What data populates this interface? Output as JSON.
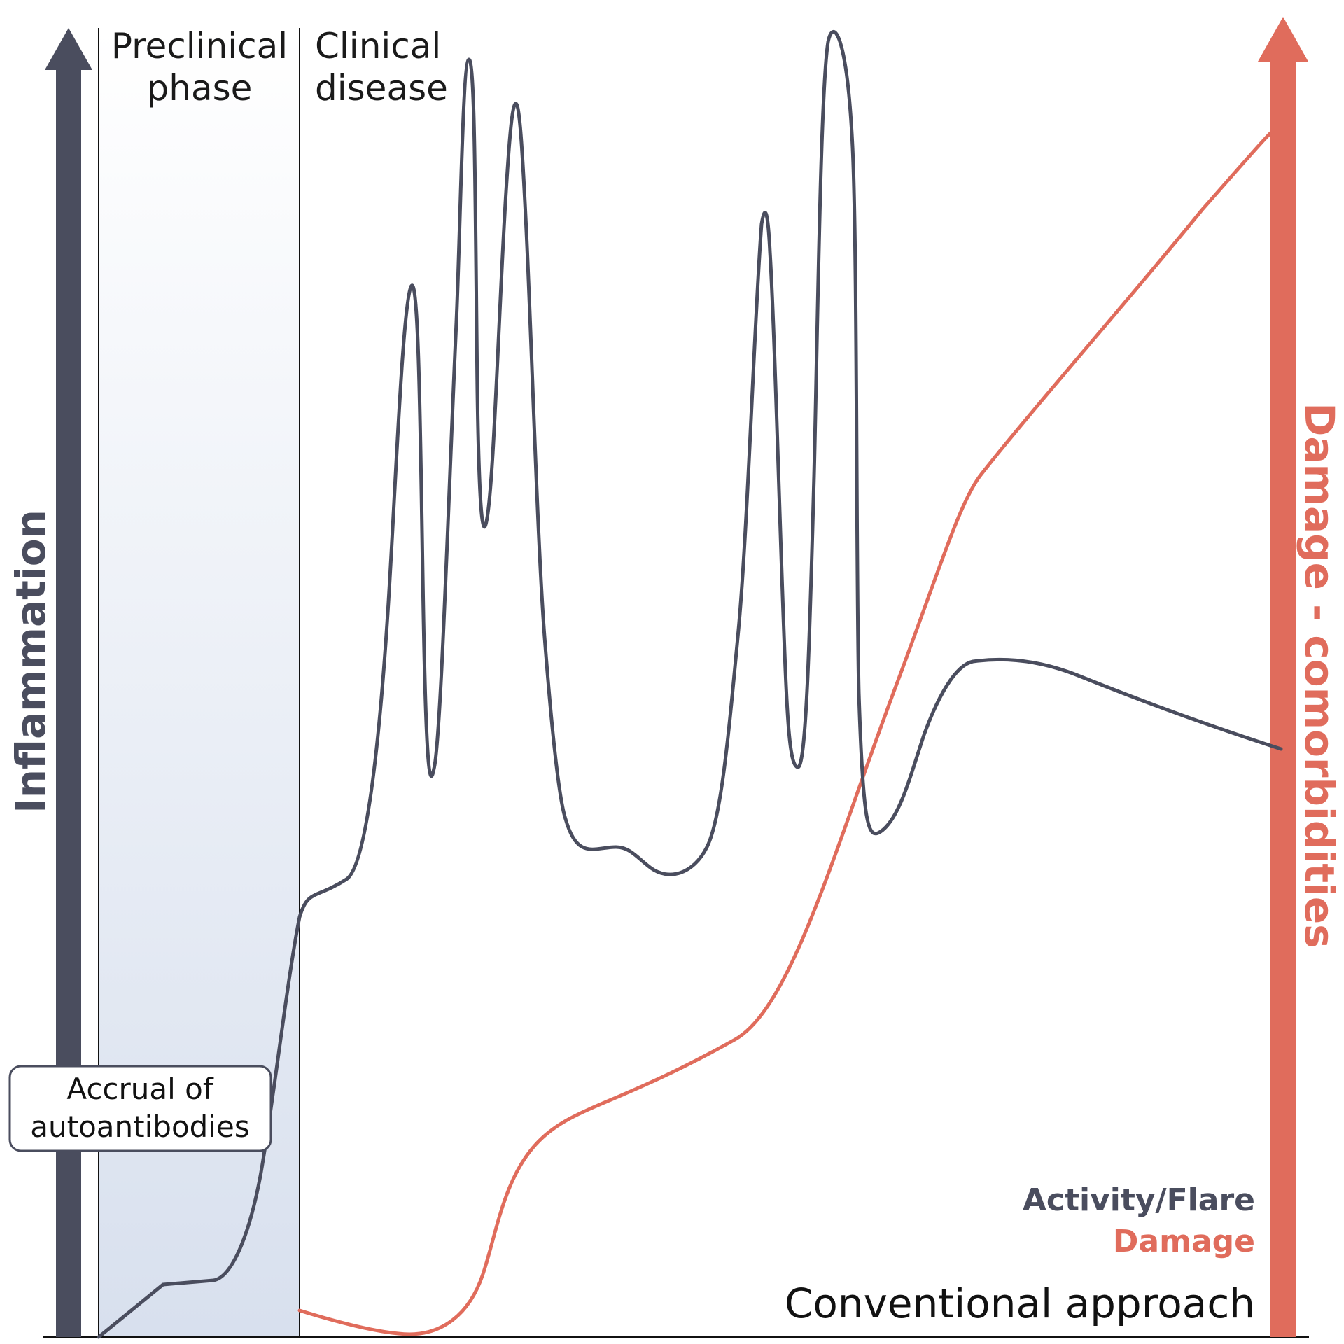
{
  "colors": {
    "inflammation": "#4a4d5e",
    "damage": "#e06c5c",
    "preclinical_top": "#ffffff",
    "preclinical_bottom": "#d8e0ee",
    "baseline": "#111111"
  },
  "phases": {
    "preclinical_line1": "Preclinical",
    "preclinical_line2": "phase",
    "clinical_line1": "Clinical",
    "clinical_line2": "disease"
  },
  "axes": {
    "left_title": "Inflammation",
    "right_title": "Damage - comorbidities"
  },
  "callout": {
    "line1": "Accrual of",
    "line2": "autoantibodies"
  },
  "legend": {
    "activity_label": "Activity/Flare",
    "damage_label": "Damage"
  },
  "approach_label": "Conventional approach"
}
